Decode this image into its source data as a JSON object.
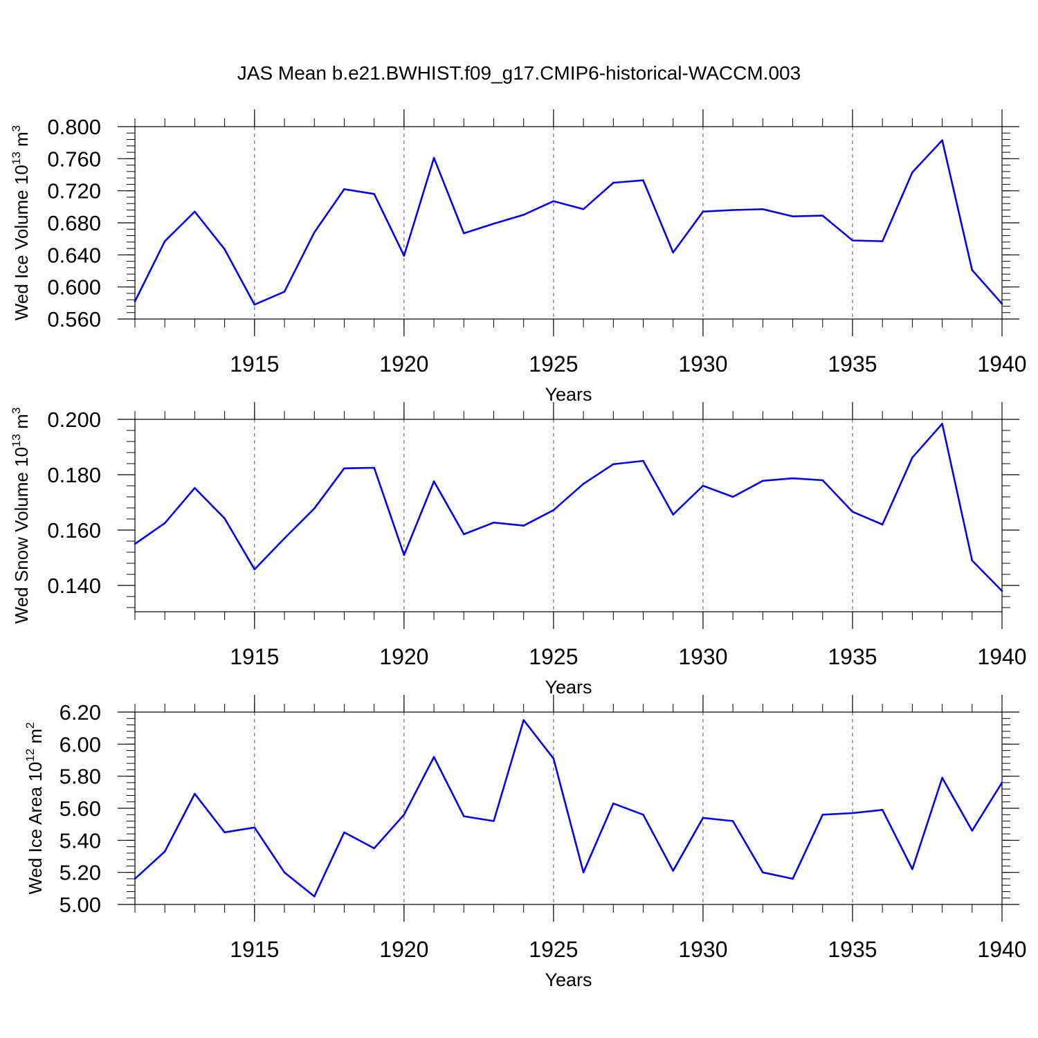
{
  "title": "JAS Mean b.e21.BWHIST.f09_g17.CMIP6-historical-WACCM.003",
  "colors": {
    "line": "#0000ff",
    "axis": "#000000",
    "gridline": "#555555",
    "background": "#ffffff"
  },
  "chart_data": [
    {
      "type": "line",
      "ylabel_main": "Wed Ice Volume 10",
      "ylabel_exp": "13",
      "ylabel_unit": " m",
      "ylabel_unit_exp": "3",
      "xlabel": "Years",
      "xlim": [
        1911,
        1940
      ],
      "ylim": [
        0.56,
        0.8
      ],
      "yticks": [
        0.56,
        0.6,
        0.64,
        0.68,
        0.72,
        0.76,
        0.8
      ],
      "ytick_labels": [
        "0.560",
        "0.600",
        "0.640",
        "0.680",
        "0.720",
        "0.760",
        "0.800"
      ],
      "xticks": [
        1915,
        1920,
        1925,
        1930,
        1935,
        1940
      ],
      "xtick_labels": [
        "1915",
        "1920",
        "1925",
        "1930",
        "1935",
        "1940"
      ],
      "x": [
        1911,
        1912,
        1913,
        1914,
        1915,
        1916,
        1917,
        1918,
        1919,
        1920,
        1921,
        1922,
        1923,
        1924,
        1925,
        1926,
        1927,
        1928,
        1929,
        1930,
        1931,
        1932,
        1933,
        1934,
        1935,
        1936,
        1937,
        1938,
        1939,
        1940
      ],
      "values": [
        0.582,
        0.657,
        0.694,
        0.647,
        0.578,
        0.594,
        0.668,
        0.722,
        0.716,
        0.639,
        0.761,
        0.667,
        0.679,
        0.69,
        0.707,
        0.697,
        0.73,
        0.733,
        0.643,
        0.694,
        0.696,
        0.697,
        0.688,
        0.689,
        0.658,
        0.657,
        0.743,
        0.783,
        0.621,
        0.579
      ]
    },
    {
      "type": "line",
      "ylabel_main": "Wed Snow Volume 10",
      "ylabel_exp": "13",
      "ylabel_unit": " m",
      "ylabel_unit_exp": "3",
      "xlabel": "Years",
      "xlim": [
        1911,
        1940
      ],
      "ylim": [
        0.1305,
        0.2
      ],
      "yticks": [
        0.14,
        0.16,
        0.18,
        0.2
      ],
      "ytick_labels": [
        "0.140",
        "0.160",
        "0.180",
        "0.200"
      ],
      "xticks": [
        1915,
        1920,
        1925,
        1930,
        1935,
        1940
      ],
      "xtick_labels": [
        "1915",
        "1920",
        "1925",
        "1930",
        "1935",
        "1940"
      ],
      "x": [
        1911,
        1912,
        1913,
        1914,
        1915,
        1916,
        1917,
        1918,
        1919,
        1920,
        1921,
        1922,
        1923,
        1924,
        1925,
        1926,
        1927,
        1928,
        1929,
        1930,
        1931,
        1932,
        1933,
        1934,
        1935,
        1936,
        1937,
        1938,
        1939,
        1940
      ],
      "values": [
        0.155,
        0.1625,
        0.1752,
        0.1642,
        0.1458,
        0.157,
        0.1678,
        0.1823,
        0.1825,
        0.151,
        0.1776,
        0.1585,
        0.1627,
        0.1616,
        0.1672,
        0.1767,
        0.1838,
        0.185,
        0.1656,
        0.176,
        0.172,
        0.1778,
        0.1787,
        0.178,
        0.1666,
        0.162,
        0.1862,
        0.1984,
        0.149,
        0.138
      ]
    },
    {
      "type": "line",
      "ylabel_main": "Wed Ice Area 10",
      "ylabel_exp": "12",
      "ylabel_unit": " m",
      "ylabel_unit_exp": "2",
      "xlabel": "Years",
      "xlim": [
        1911,
        1940
      ],
      "ylim": [
        5.0,
        6.2
      ],
      "yticks": [
        5.0,
        5.2,
        5.4,
        5.6,
        5.8,
        6.0,
        6.2
      ],
      "ytick_labels": [
        "5.00",
        "5.20",
        "5.40",
        "5.60",
        "5.80",
        "6.00",
        "6.20"
      ],
      "xticks": [
        1915,
        1920,
        1925,
        1930,
        1935,
        1940
      ],
      "xtick_labels": [
        "1915",
        "1920",
        "1925",
        "1930",
        "1935",
        "1940"
      ],
      "x": [
        1911,
        1912,
        1913,
        1914,
        1915,
        1916,
        1917,
        1918,
        1919,
        1920,
        1921,
        1922,
        1923,
        1924,
        1925,
        1926,
        1927,
        1928,
        1929,
        1930,
        1931,
        1932,
        1933,
        1934,
        1935,
        1936,
        1937,
        1938,
        1939,
        1940
      ],
      "values": [
        5.16,
        5.33,
        5.69,
        5.45,
        5.48,
        5.2,
        5.05,
        5.45,
        5.35,
        5.56,
        5.92,
        5.55,
        5.52,
        6.15,
        5.91,
        5.2,
        5.63,
        5.56,
        5.21,
        5.54,
        5.52,
        5.2,
        5.16,
        5.56,
        5.57,
        5.59,
        5.22,
        5.79,
        5.46,
        5.76
      ]
    }
  ]
}
